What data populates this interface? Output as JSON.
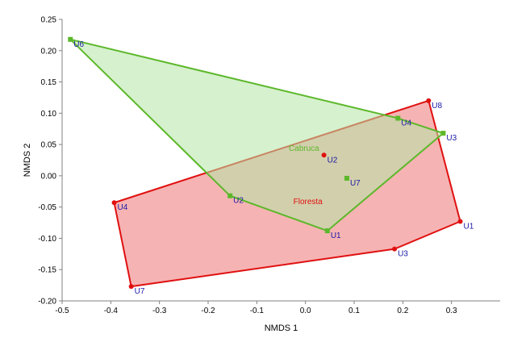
{
  "chart_data": {
    "type": "scatter",
    "title": "",
    "xlabel": "NMDS 1",
    "ylabel": "NMDS 2",
    "xlim": [
      -0.5,
      0.4
    ],
    "ylim": [
      -0.2,
      0.25
    ],
    "x_ticks": [
      -0.5,
      -0.4,
      -0.3,
      -0.2,
      -0.1,
      0.0,
      0.1,
      0.2,
      0.3
    ],
    "x_tick_labels": [
      "-0.5",
      "-0.4",
      "-0.3",
      "-0.2",
      "-0.1",
      "0.0",
      "0.1",
      "0.2",
      "0.3"
    ],
    "y_ticks": [
      -0.2,
      -0.15,
      -0.1,
      -0.05,
      0.0,
      0.05,
      0.1,
      0.15,
      0.2,
      0.25
    ],
    "y_tick_labels": [
      "-0.20",
      "-0.15",
      "-0.10",
      "-0.05",
      "0.00",
      "0.05",
      "0.10",
      "0.15",
      "0.20",
      "0.25"
    ],
    "grid": false,
    "series": [
      {
        "name": "Floresta",
        "color": "#e01010",
        "fill": "#f08080",
        "fill_opacity": 0.6,
        "marker": "circle",
        "label_pos": [
          0.005,
          -0.045
        ],
        "points": [
          {
            "label": "U1",
            "x": 0.318,
            "y": -0.073
          },
          {
            "label": "U2",
            "x": 0.038,
            "y": 0.033
          },
          {
            "label": "U3",
            "x": 0.183,
            "y": -0.117
          },
          {
            "label": "U4",
            "x": -0.393,
            "y": -0.043
          },
          {
            "label": "U7",
            "x": -0.358,
            "y": -0.177
          },
          {
            "label": "U8",
            "x": 0.253,
            "y": 0.12
          }
        ],
        "hull": [
          "U8",
          "U1",
          "U3",
          "U7",
          "U4"
        ]
      },
      {
        "name": "Cabruca",
        "color": "#5cb82a",
        "fill": "#b4e6a6",
        "fill_opacity": 0.55,
        "marker": "square",
        "label_pos": [
          -0.003,
          0.04
        ],
        "points": [
          {
            "label": "U1",
            "x": 0.045,
            "y": -0.088
          },
          {
            "label": "U2",
            "x": -0.155,
            "y": -0.032
          },
          {
            "label": "U3",
            "x": 0.283,
            "y": 0.068
          },
          {
            "label": "U4",
            "x": 0.19,
            "y": 0.092
          },
          {
            "label": "U6",
            "x": -0.483,
            "y": 0.218
          },
          {
            "label": "U7",
            "x": 0.085,
            "y": -0.004
          }
        ],
        "hull": [
          "U6",
          "U4",
          "U3",
          "U1",
          "U2"
        ]
      }
    ]
  }
}
